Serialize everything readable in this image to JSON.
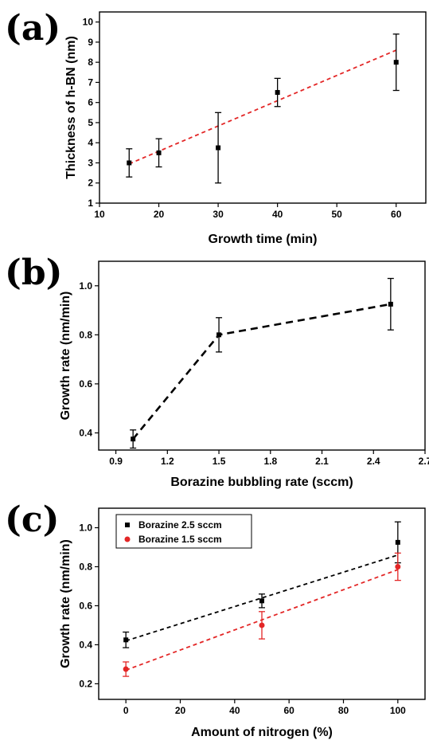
{
  "panels": [
    {
      "label": "(a)"
    },
    {
      "label": "(b)"
    },
    {
      "label": "(c)"
    }
  ],
  "chart_data": [
    {
      "type": "scatter",
      "title": "",
      "xlabel": "Growth time (min)",
      "ylabel": "Thickness of h-BN (nm)",
      "xlim": [
        10,
        65
      ],
      "ylim": [
        1,
        10.5
      ],
      "xticks": [
        10,
        20,
        30,
        40,
        50,
        60
      ],
      "yticks": [
        1,
        2,
        3,
        4,
        5,
        6,
        7,
        8,
        9,
        10
      ],
      "grid": false,
      "series": [
        {
          "color": "#000000",
          "marker": "square",
          "x": [
            15,
            20,
            30,
            40,
            60
          ],
          "y": [
            3.0,
            3.5,
            3.75,
            6.5,
            8.0
          ],
          "err": [
            0.7,
            0.7,
            1.75,
            0.7,
            1.4
          ]
        }
      ],
      "fit_lines": [
        {
          "color": "#e32626",
          "style": "dashed",
          "x": [
            15,
            60
          ],
          "y": [
            2.95,
            8.6
          ]
        }
      ]
    },
    {
      "type": "line",
      "title": "",
      "xlabel": "Borazine bubbling rate (sccm)",
      "ylabel": "Growth rate (nm/min)",
      "xlim": [
        0.8,
        2.7
      ],
      "ylim": [
        0.33,
        1.1
      ],
      "xticks": [
        0.9,
        1.2,
        1.5,
        1.8,
        2.1,
        2.4,
        2.7
      ],
      "yticks": [
        0.4,
        0.6,
        0.8,
        1.0
      ],
      "grid": false,
      "series": [
        {
          "color": "#000000",
          "marker": "square",
          "line_style": "dashed",
          "x": [
            1.0,
            1.5,
            2.5
          ],
          "y": [
            0.375,
            0.8,
            0.925
          ],
          "err": [
            0.037,
            0.07,
            0.105
          ]
        }
      ]
    },
    {
      "type": "scatter",
      "title": "",
      "xlabel": "Amount of nitrogen (%)",
      "ylabel": "Growth rate (nm/min)",
      "xlim": [
        -10,
        110
      ],
      "ylim": [
        0.12,
        1.1
      ],
      "xticks": [
        0,
        20,
        40,
        60,
        80,
        100
      ],
      "yticks": [
        0.2,
        0.4,
        0.6,
        0.8,
        1.0
      ],
      "grid": false,
      "legend_position": "top-left",
      "series": [
        {
          "name": "Borazine 2.5 sccm",
          "color": "#000000",
          "marker": "square",
          "x": [
            0,
            50,
            100
          ],
          "y": [
            0.425,
            0.625,
            0.925
          ],
          "err": [
            0.04,
            0.035,
            0.105
          ]
        },
        {
          "name": "Borazine 1.5 sccm",
          "color": "#e32626",
          "marker": "circle",
          "x": [
            0,
            50,
            100
          ],
          "y": [
            0.275,
            0.5,
            0.8
          ],
          "err": [
            0.037,
            0.07,
            0.07
          ]
        }
      ],
      "fit_lines": [
        {
          "color": "#000000",
          "style": "dashed",
          "x": [
            0,
            100
          ],
          "y": [
            0.42,
            0.86
          ]
        },
        {
          "color": "#e32626",
          "style": "dashed",
          "x": [
            0,
            100
          ],
          "y": [
            0.27,
            0.785
          ]
        }
      ]
    }
  ]
}
